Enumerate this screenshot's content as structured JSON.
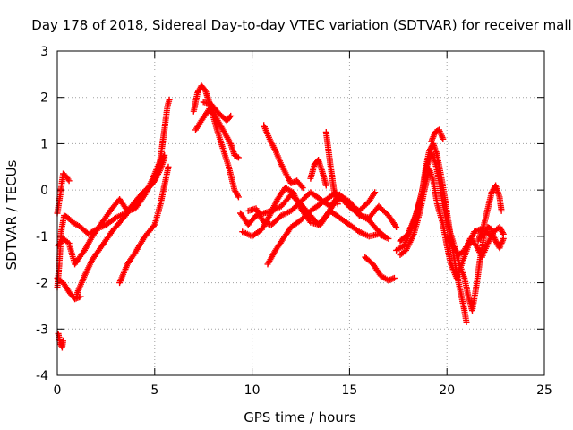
{
  "chart_data": {
    "type": "scatter",
    "title": "Day 178 of 2018, Sidereal Day-to-day VTEC variation (SDTVAR) for receiver mall",
    "xlabel": "GPS time / hours",
    "ylabel": "SDTVAR / TECUs",
    "xlim": [
      0,
      25
    ],
    "ylim": [
      -4,
      3
    ],
    "xticks": [
      "0",
      "5",
      "10",
      "15",
      "20",
      "25"
    ],
    "yticks": [
      "-4",
      "-3",
      "-2",
      "-1",
      "0",
      "1",
      "2",
      "3"
    ],
    "grid": true,
    "marker": "+",
    "color": "#ff0000",
    "series": [
      {
        "name": "s1",
        "points": [
          [
            0.0,
            -0.5
          ],
          [
            0.15,
            -0.1
          ],
          [
            0.3,
            0.35
          ],
          [
            0.45,
            0.3
          ],
          [
            0.6,
            0.2
          ]
        ]
      },
      {
        "name": "s2",
        "points": [
          [
            0.0,
            -2.1
          ],
          [
            0.1,
            -1.6
          ],
          [
            0.2,
            -0.9
          ],
          [
            0.35,
            -0.55
          ],
          [
            0.55,
            -0.6
          ],
          [
            0.8,
            -0.7
          ],
          [
            1.2,
            -0.8
          ],
          [
            1.6,
            -0.95
          ],
          [
            2.0,
            -0.85
          ],
          [
            2.5,
            -0.75
          ],
          [
            3.0,
            -0.6
          ],
          [
            3.5,
            -0.5
          ],
          [
            4.0,
            -0.25
          ],
          [
            4.4,
            -0.05
          ],
          [
            4.8,
            0.1
          ],
          [
            5.1,
            0.3
          ],
          [
            5.3,
            0.7
          ],
          [
            5.5,
            1.3
          ],
          [
            5.65,
            1.8
          ],
          [
            5.75,
            1.95
          ]
        ]
      },
      {
        "name": "s3",
        "points": [
          [
            0.05,
            -1.2
          ],
          [
            0.3,
            -1.05
          ],
          [
            0.6,
            -1.15
          ],
          [
            0.9,
            -1.6
          ],
          [
            1.4,
            -1.3
          ],
          [
            1.8,
            -1.0
          ],
          [
            2.3,
            -0.7
          ],
          [
            2.8,
            -0.4
          ],
          [
            3.2,
            -0.2
          ],
          [
            3.6,
            -0.45
          ],
          [
            4.0,
            -0.4
          ],
          [
            4.5,
            -0.1
          ],
          [
            4.9,
            0.25
          ],
          [
            5.2,
            0.55
          ],
          [
            5.5,
            0.75
          ]
        ]
      },
      {
        "name": "s4",
        "points": [
          [
            0.0,
            -1.9
          ],
          [
            0.3,
            -2.0
          ],
          [
            0.6,
            -2.2
          ],
          [
            0.9,
            -2.35
          ],
          [
            1.2,
            -2.3
          ]
        ]
      },
      {
        "name": "s5",
        "points": [
          [
            1.0,
            -2.25
          ],
          [
            1.4,
            -1.85
          ],
          [
            1.8,
            -1.5
          ],
          [
            2.3,
            -1.2
          ],
          [
            2.8,
            -0.9
          ],
          [
            3.2,
            -0.7
          ],
          [
            3.7,
            -0.45
          ],
          [
            4.2,
            -0.2
          ],
          [
            4.6,
            0.0
          ],
          [
            5.0,
            0.2
          ],
          [
            5.3,
            0.45
          ],
          [
            5.5,
            0.7
          ]
        ]
      },
      {
        "name": "s6",
        "points": [
          [
            3.2,
            -2.0
          ],
          [
            3.6,
            -1.6
          ],
          [
            4.0,
            -1.35
          ],
          [
            4.5,
            -1.0
          ],
          [
            5.0,
            -0.75
          ],
          [
            5.3,
            -0.3
          ],
          [
            5.5,
            0.1
          ],
          [
            5.7,
            0.5
          ]
        ]
      },
      {
        "name": "s7",
        "points": [
          [
            0.05,
            -3.1
          ],
          [
            0.15,
            -3.3
          ],
          [
            0.25,
            -3.4
          ],
          [
            0.3,
            -3.25
          ]
        ]
      },
      {
        "name": "s8",
        "points": [
          [
            7.0,
            1.7
          ],
          [
            7.2,
            2.1
          ],
          [
            7.4,
            2.25
          ],
          [
            7.6,
            2.15
          ],
          [
            7.8,
            1.9
          ],
          [
            8.0,
            1.6
          ],
          [
            8.2,
            1.3
          ],
          [
            8.5,
            0.9
          ],
          [
            8.8,
            0.5
          ],
          [
            9.1,
            0.0
          ],
          [
            9.3,
            -0.15
          ]
        ]
      },
      {
        "name": "s9",
        "points": [
          [
            7.1,
            1.3
          ],
          [
            7.4,
            1.5
          ],
          [
            7.8,
            1.75
          ],
          [
            8.1,
            1.6
          ],
          [
            8.5,
            1.3
          ],
          [
            8.9,
            1.0
          ],
          [
            9.1,
            0.75
          ],
          [
            9.3,
            0.7
          ]
        ]
      },
      {
        "name": "s10",
        "points": [
          [
            7.5,
            1.9
          ],
          [
            7.9,
            1.85
          ],
          [
            8.3,
            1.65
          ],
          [
            8.7,
            1.5
          ],
          [
            8.9,
            1.6
          ]
        ]
      },
      {
        "name": "s11",
        "points": [
          [
            9.4,
            -0.5
          ],
          [
            9.8,
            -0.75
          ],
          [
            10.2,
            -0.55
          ],
          [
            10.6,
            -0.5
          ],
          [
            11.0,
            -0.45
          ],
          [
            11.5,
            -0.35
          ],
          [
            12.0,
            -0.1
          ],
          [
            12.5,
            -0.3
          ],
          [
            13.0,
            -0.55
          ],
          [
            13.4,
            -0.75
          ],
          [
            13.8,
            -0.55
          ],
          [
            14.2,
            -0.3
          ],
          [
            14.6,
            -0.15
          ],
          [
            15.0,
            -0.25
          ],
          [
            15.5,
            -0.55
          ],
          [
            16.0,
            -0.6
          ],
          [
            16.5,
            -0.35
          ],
          [
            17.0,
            -0.55
          ],
          [
            17.4,
            -0.8
          ]
        ]
      },
      {
        "name": "s12",
        "points": [
          [
            9.5,
            -0.9
          ],
          [
            10.0,
            -1.0
          ],
          [
            10.5,
            -0.85
          ],
          [
            10.9,
            -0.55
          ],
          [
            11.3,
            -0.2
          ],
          [
            11.7,
            0.05
          ],
          [
            12.1,
            -0.05
          ],
          [
            12.5,
            -0.4
          ],
          [
            13.0,
            -0.7
          ],
          [
            13.5,
            -0.75
          ],
          [
            14.0,
            -0.45
          ],
          [
            14.5,
            -0.6
          ],
          [
            15.0,
            -0.75
          ],
          [
            15.5,
            -0.9
          ],
          [
            16.0,
            -1.0
          ],
          [
            16.5,
            -0.95
          ],
          [
            17.0,
            -1.05
          ]
        ]
      },
      {
        "name": "s13",
        "points": [
          [
            9.8,
            -0.45
          ],
          [
            10.2,
            -0.4
          ],
          [
            10.6,
            -0.7
          ],
          [
            11.0,
            -0.75
          ],
          [
            11.5,
            -0.55
          ],
          [
            12.0,
            -0.45
          ],
          [
            12.5,
            -0.25
          ],
          [
            13.0,
            -0.05
          ],
          [
            13.5,
            -0.2
          ],
          [
            14.0,
            -0.35
          ],
          [
            14.5,
            -0.1
          ],
          [
            15.0,
            -0.3
          ],
          [
            15.5,
            -0.45
          ],
          [
            16.0,
            -0.25
          ],
          [
            16.3,
            -0.05
          ]
        ]
      },
      {
        "name": "s14",
        "points": [
          [
            10.6,
            1.4
          ],
          [
            10.9,
            1.1
          ],
          [
            11.2,
            0.85
          ],
          [
            11.5,
            0.55
          ],
          [
            11.8,
            0.3
          ],
          [
            12.0,
            0.15
          ],
          [
            12.3,
            0.2
          ],
          [
            12.6,
            0.05
          ]
        ]
      },
      {
        "name": "s15",
        "points": [
          [
            10.8,
            -1.6
          ],
          [
            11.2,
            -1.3
          ],
          [
            11.6,
            -1.05
          ],
          [
            12.0,
            -0.8
          ],
          [
            12.5,
            -0.65
          ],
          [
            13.0,
            -0.45
          ],
          [
            13.5,
            -0.3
          ],
          [
            14.0,
            -0.15
          ],
          [
            14.3,
            -0.05
          ]
        ]
      },
      {
        "name": "s16",
        "points": [
          [
            13.0,
            0.25
          ],
          [
            13.2,
            0.55
          ],
          [
            13.4,
            0.65
          ],
          [
            13.6,
            0.4
          ],
          [
            13.8,
            0.1
          ]
        ]
      },
      {
        "name": "s17",
        "points": [
          [
            13.8,
            1.25
          ],
          [
            14.0,
            0.6
          ],
          [
            14.2,
            0.0
          ],
          [
            14.4,
            -0.3
          ]
        ]
      },
      {
        "name": "s18",
        "points": [
          [
            14.6,
            -0.2
          ],
          [
            15.1,
            -0.4
          ],
          [
            15.6,
            -0.55
          ],
          [
            16.0,
            -0.65
          ],
          [
            16.4,
            -0.85
          ],
          [
            16.8,
            -1.0
          ]
        ]
      },
      {
        "name": "s19",
        "points": [
          [
            15.8,
            -1.45
          ],
          [
            16.2,
            -1.6
          ],
          [
            16.6,
            -1.85
          ],
          [
            17.0,
            -1.95
          ],
          [
            17.3,
            -1.9
          ]
        ]
      },
      {
        "name": "s20",
        "points": [
          [
            17.4,
            -1.3
          ],
          [
            17.8,
            -1.2
          ],
          [
            18.2,
            -0.8
          ],
          [
            18.5,
            -0.4
          ],
          [
            18.8,
            0.1
          ],
          [
            19.0,
            0.55
          ],
          [
            19.2,
            0.8
          ],
          [
            19.4,
            0.6
          ],
          [
            19.6,
            0.2
          ],
          [
            19.8,
            -0.3
          ],
          [
            20.0,
            -0.7
          ],
          [
            20.3,
            -1.1
          ],
          [
            20.6,
            -1.55
          ],
          [
            20.9,
            -1.9
          ],
          [
            21.1,
            -2.3
          ],
          [
            21.3,
            -2.6
          ],
          [
            21.5,
            -2.1
          ],
          [
            21.7,
            -1.5
          ],
          [
            21.9,
            -1.0
          ],
          [
            22.1,
            -0.8
          ],
          [
            22.3,
            -0.85
          ]
        ]
      },
      {
        "name": "s21",
        "points": [
          [
            17.6,
            -1.1
          ],
          [
            18.0,
            -0.95
          ],
          [
            18.4,
            -0.55
          ],
          [
            18.7,
            -0.1
          ],
          [
            18.9,
            0.45
          ],
          [
            19.1,
            0.85
          ],
          [
            19.3,
            1.0
          ],
          [
            19.5,
            0.75
          ],
          [
            19.7,
            0.3
          ],
          [
            19.9,
            -0.2
          ],
          [
            20.1,
            -0.75
          ],
          [
            20.3,
            -1.3
          ],
          [
            20.5,
            -1.8
          ],
          [
            20.7,
            -2.2
          ],
          [
            20.9,
            -2.6
          ],
          [
            21.0,
            -2.85
          ]
        ]
      },
      {
        "name": "s22",
        "points": [
          [
            17.6,
            -1.4
          ],
          [
            17.9,
            -1.3
          ],
          [
            18.3,
            -0.95
          ],
          [
            18.6,
            -0.5
          ],
          [
            18.9,
            0.1
          ],
          [
            19.1,
            0.45
          ],
          [
            19.3,
            0.2
          ],
          [
            19.5,
            -0.3
          ],
          [
            19.8,
            -0.75
          ],
          [
            20.0,
            -1.2
          ],
          [
            20.2,
            -1.6
          ],
          [
            20.5,
            -1.9
          ],
          [
            20.8,
            -1.55
          ],
          [
            21.1,
            -1.2
          ],
          [
            21.4,
            -0.9
          ],
          [
            21.7,
            -0.85
          ],
          [
            22.0,
            -0.9
          ],
          [
            22.3,
            -1.0
          ]
        ]
      },
      {
        "name": "s23",
        "points": [
          [
            19.2,
            1.05
          ],
          [
            19.4,
            1.25
          ],
          [
            19.6,
            1.3
          ],
          [
            19.8,
            1.1
          ]
        ]
      },
      {
        "name": "s24",
        "points": [
          [
            20.0,
            -1.0
          ],
          [
            20.3,
            -1.2
          ],
          [
            20.6,
            -1.4
          ],
          [
            20.9,
            -1.3
          ],
          [
            21.2,
            -1.05
          ],
          [
            21.5,
            -1.2
          ],
          [
            21.8,
            -1.45
          ],
          [
            22.1,
            -1.15
          ],
          [
            22.4,
            -0.9
          ],
          [
            22.7,
            -0.8
          ],
          [
            22.9,
            -0.95
          ]
        ]
      },
      {
        "name": "s25",
        "points": [
          [
            21.6,
            -1.1
          ],
          [
            21.9,
            -0.75
          ],
          [
            22.1,
            -0.4
          ],
          [
            22.3,
            -0.05
          ],
          [
            22.5,
            0.1
          ],
          [
            22.7,
            -0.15
          ],
          [
            22.8,
            -0.45
          ]
        ]
      },
      {
        "name": "s26",
        "points": [
          [
            22.3,
            -0.9
          ],
          [
            22.5,
            -1.1
          ],
          [
            22.7,
            -1.25
          ],
          [
            22.9,
            -1.05
          ]
        ]
      }
    ]
  }
}
